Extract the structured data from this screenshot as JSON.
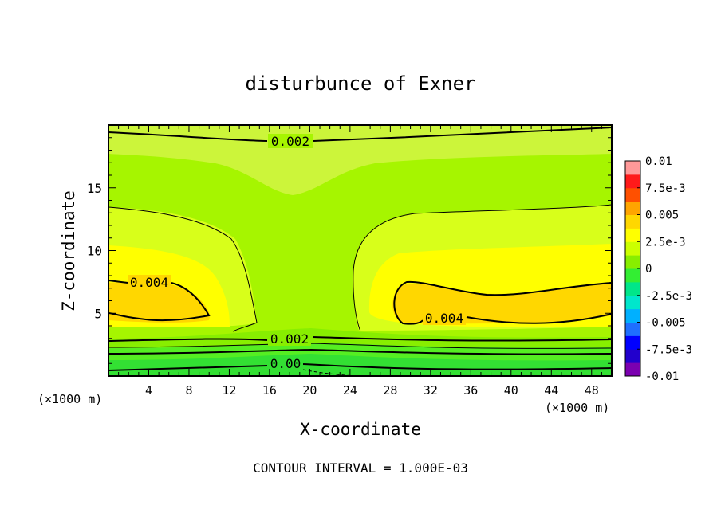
{
  "chart_data": {
    "type": "heatmap",
    "title": "disturbunce of Exner",
    "xlabel": "X-coordinate",
    "ylabel": "Z-coordinate",
    "x_unit_left": "(×1000 m)",
    "x_unit_right": "(×1000 m)",
    "xlim": [
      0,
      50
    ],
    "ylim": [
      0,
      20
    ],
    "x_ticks": [
      "4",
      "8",
      "12",
      "16",
      "20",
      "24",
      "28",
      "32",
      "36",
      "40",
      "44",
      "48"
    ],
    "y_ticks": [
      "5",
      "10",
      "15"
    ],
    "footer": "CONTOUR INTERVAL = 1.000E-03",
    "contour_labels": [
      "0.002",
      "0.004",
      "0.004",
      "0.002",
      "0.00"
    ],
    "colorbar": {
      "labels": [
        "0.01",
        "7.5e-3",
        "0.005",
        "2.5e-3",
        "0",
        "-2.5e-3",
        "-0.005",
        "-7.5e-3",
        "-0.01"
      ],
      "range": [
        -0.01,
        0.01
      ],
      "colors": [
        "#7b00b0",
        "#2200cc",
        "#0000ff",
        "#1f6fff",
        "#00b0ff",
        "#00e6cc",
        "#00e68a",
        "#33ee33",
        "#88ee00",
        "#ccff00",
        "#ffff00",
        "#ffd700",
        "#ffa500",
        "#ff5000",
        "#ff1a1a",
        "#ff9999"
      ]
    },
    "regions": {
      "background": "#a6f500",
      "upper_band": "#ccf53a",
      "mid_band": "#d8ff1a",
      "yellow_core": "#ffff00",
      "orange_core": "#ffd700",
      "low_band_1": "#88ee00",
      "low_band_2": "#55ee22",
      "low_band_3": "#33e033"
    }
  }
}
